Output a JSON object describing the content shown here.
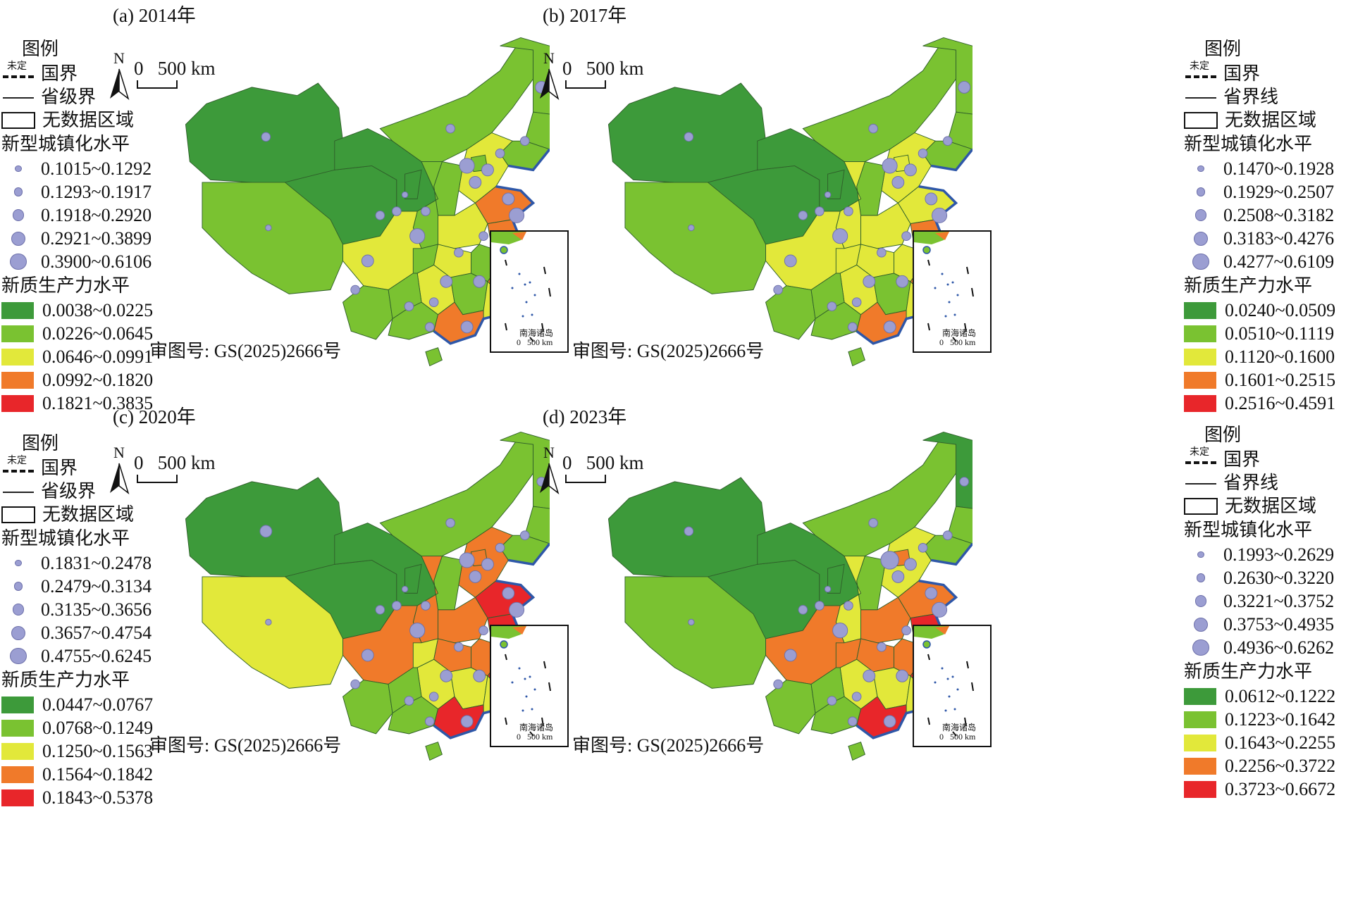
{
  "panels": [
    {
      "id": "a",
      "title": "(a) 2014年",
      "legend_title": "图例",
      "legend_items": {
        "border_national": "国界",
        "border_tiny": "未定",
        "border_provincial": "省级界",
        "no_data": "无数据区域"
      },
      "urbanization_title": "新型城镇化水平",
      "urbanization_classes": [
        "0.1015~0.1292",
        "0.1293~0.1917",
        "0.1918~0.2920",
        "0.2921~0.3899",
        "0.3900~0.6106"
      ],
      "productivity_title": "新质生产力水平",
      "productivity_classes": [
        "0.0038~0.0225",
        "0.0226~0.0645",
        "0.0646~0.0991",
        "0.0992~0.1820",
        "0.1821~0.3835"
      ],
      "scale_label": "0   500 km",
      "north_label": "N",
      "approval": "审图号: GS(2025)2666号",
      "inset_label": "南海诸岛",
      "inset_scale": "0   500 km"
    },
    {
      "id": "b",
      "title": "(b) 2017年",
      "legend_title": "图例",
      "legend_items": {
        "border_national": "国界",
        "border_tiny": "未定",
        "border_provincial": "省界线",
        "no_data": "无数据区域"
      },
      "urbanization_title": "新型城镇化水平",
      "urbanization_classes": [
        "0.1470~0.1928",
        "0.1929~0.2507",
        "0.2508~0.3182",
        "0.3183~0.4276",
        "0.4277~0.6109"
      ],
      "productivity_title": "新质生产力水平",
      "productivity_classes": [
        "0.0240~0.0509",
        "0.0510~0.1119",
        "0.1120~0.1600",
        "0.1601~0.2515",
        "0.2516~0.4591"
      ],
      "scale_label": "0   500 km",
      "north_label": "N",
      "approval": "审图号: GS(2025)2666号",
      "inset_label": "南海诸岛",
      "inset_scale": "0   500 km"
    },
    {
      "id": "c",
      "title": "(c) 2020年",
      "legend_title": "图例",
      "legend_items": {
        "border_national": "国界",
        "border_tiny": "未定",
        "border_provincial": "省级界",
        "no_data": "无数据区域"
      },
      "urbanization_title": "新型城镇化水平",
      "urbanization_classes": [
        "0.1831~0.2478",
        "0.2479~0.3134",
        "0.3135~0.3656",
        "0.3657~0.4754",
        "0.4755~0.6245"
      ],
      "productivity_title": "新质生产力水平",
      "productivity_classes": [
        "0.0447~0.0767",
        "0.0768~0.1249",
        "0.1250~0.1563",
        "0.1564~0.1842",
        "0.1843~0.5378"
      ],
      "scale_label": "0   500 km",
      "north_label": "N",
      "approval": "审图号: GS(2025)2666号",
      "inset_label": "南海诸岛",
      "inset_scale": "0   500 km"
    },
    {
      "id": "d",
      "title": "(d) 2023年",
      "legend_title": "图例",
      "legend_items": {
        "border_national": "国界",
        "border_tiny": "未定",
        "border_provincial": "省界线",
        "no_data": "无数据区域"
      },
      "urbanization_title": "新型城镇化水平",
      "urbanization_classes": [
        "0.1993~0.2629",
        "0.2630~0.3220",
        "0.3221~0.3752",
        "0.3753~0.4935",
        "0.4936~0.6262"
      ],
      "productivity_title": "新质生产力水平",
      "productivity_classes": [
        "0.0612~0.1222",
        "0.1223~0.1642",
        "0.1643~0.2255",
        "0.2256~0.3722",
        "0.3723~0.6672"
      ],
      "scale_label": "0   500 km",
      "north_label": "N",
      "approval": "审图号: GS(2025)2666号",
      "inset_label": "南海诸岛",
      "inset_scale": "0   500 km"
    }
  ],
  "colors": {
    "productivity_scale": [
      "#3d9a3a",
      "#7ac231",
      "#e2e83a",
      "#f07a2a",
      "#e8262a"
    ],
    "urbanization_dot": "#9b9ed2",
    "coastline": "#2e57a8"
  }
}
